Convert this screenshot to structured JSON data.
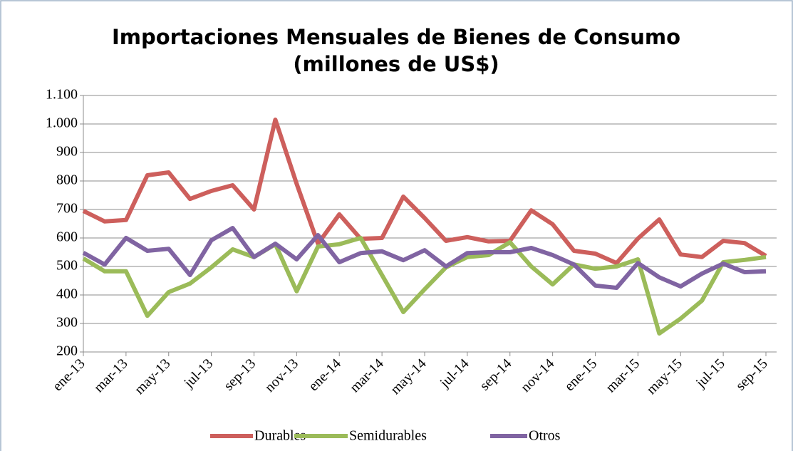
{
  "chart_data": {
    "type": "line",
    "title": [
      "Importaciones Mensuales de Bienes de Consumo",
      "(millones de US$)"
    ],
    "categories": [
      "ene-13",
      null,
      "mar-13",
      null,
      "may-13",
      null,
      "jul-13",
      null,
      "sep-13",
      null,
      "nov-13",
      null,
      "ene-14",
      null,
      "mar-14",
      null,
      "may-14",
      null,
      "jul-14",
      null,
      "sep-14",
      null,
      "nov-14",
      null,
      "ene-15",
      null,
      "mar-15",
      null,
      "may-15",
      null,
      "jul-15",
      null,
      "sep-15"
    ],
    "series": [
      {
        "name": "Durables",
        "color": "#cd5f5c",
        "values": [
          695,
          658,
          663,
          820,
          830,
          737,
          765,
          785,
          700,
          1015,
          790,
          580,
          683,
          597,
          600,
          745,
          670,
          590,
          603,
          588,
          590,
          697,
          648,
          555,
          545,
          512,
          598,
          665,
          542,
          533,
          590,
          582,
          537
        ]
      },
      {
        "name": "Semidurables",
        "color": "#9bbb59",
        "values": [
          528,
          483,
          483,
          327,
          410,
          440,
          497,
          560,
          533,
          578,
          413,
          570,
          578,
          600,
          470,
          340,
          420,
          497,
          533,
          540,
          585,
          500,
          437,
          507,
          492,
          500,
          525,
          265,
          317,
          380,
          515,
          523,
          533
        ]
      },
      {
        "name": "Otros",
        "color": "#8064a2",
        "values": [
          548,
          507,
          600,
          555,
          562,
          470,
          592,
          635,
          533,
          580,
          525,
          610,
          515,
          547,
          553,
          522,
          557,
          500,
          547,
          550,
          550,
          565,
          540,
          507,
          433,
          425,
          512,
          462,
          430,
          475,
          510,
          480,
          483
        ]
      }
    ],
    "ylim": [
      200,
      1100
    ],
    "yticks": [
      200,
      300,
      400,
      500,
      600,
      700,
      800,
      900,
      {
        "value": 1000,
        "label": "1.000"
      },
      {
        "value": 1100,
        "label": "1.100"
      }
    ],
    "grid": true,
    "legend": "bottom"
  }
}
